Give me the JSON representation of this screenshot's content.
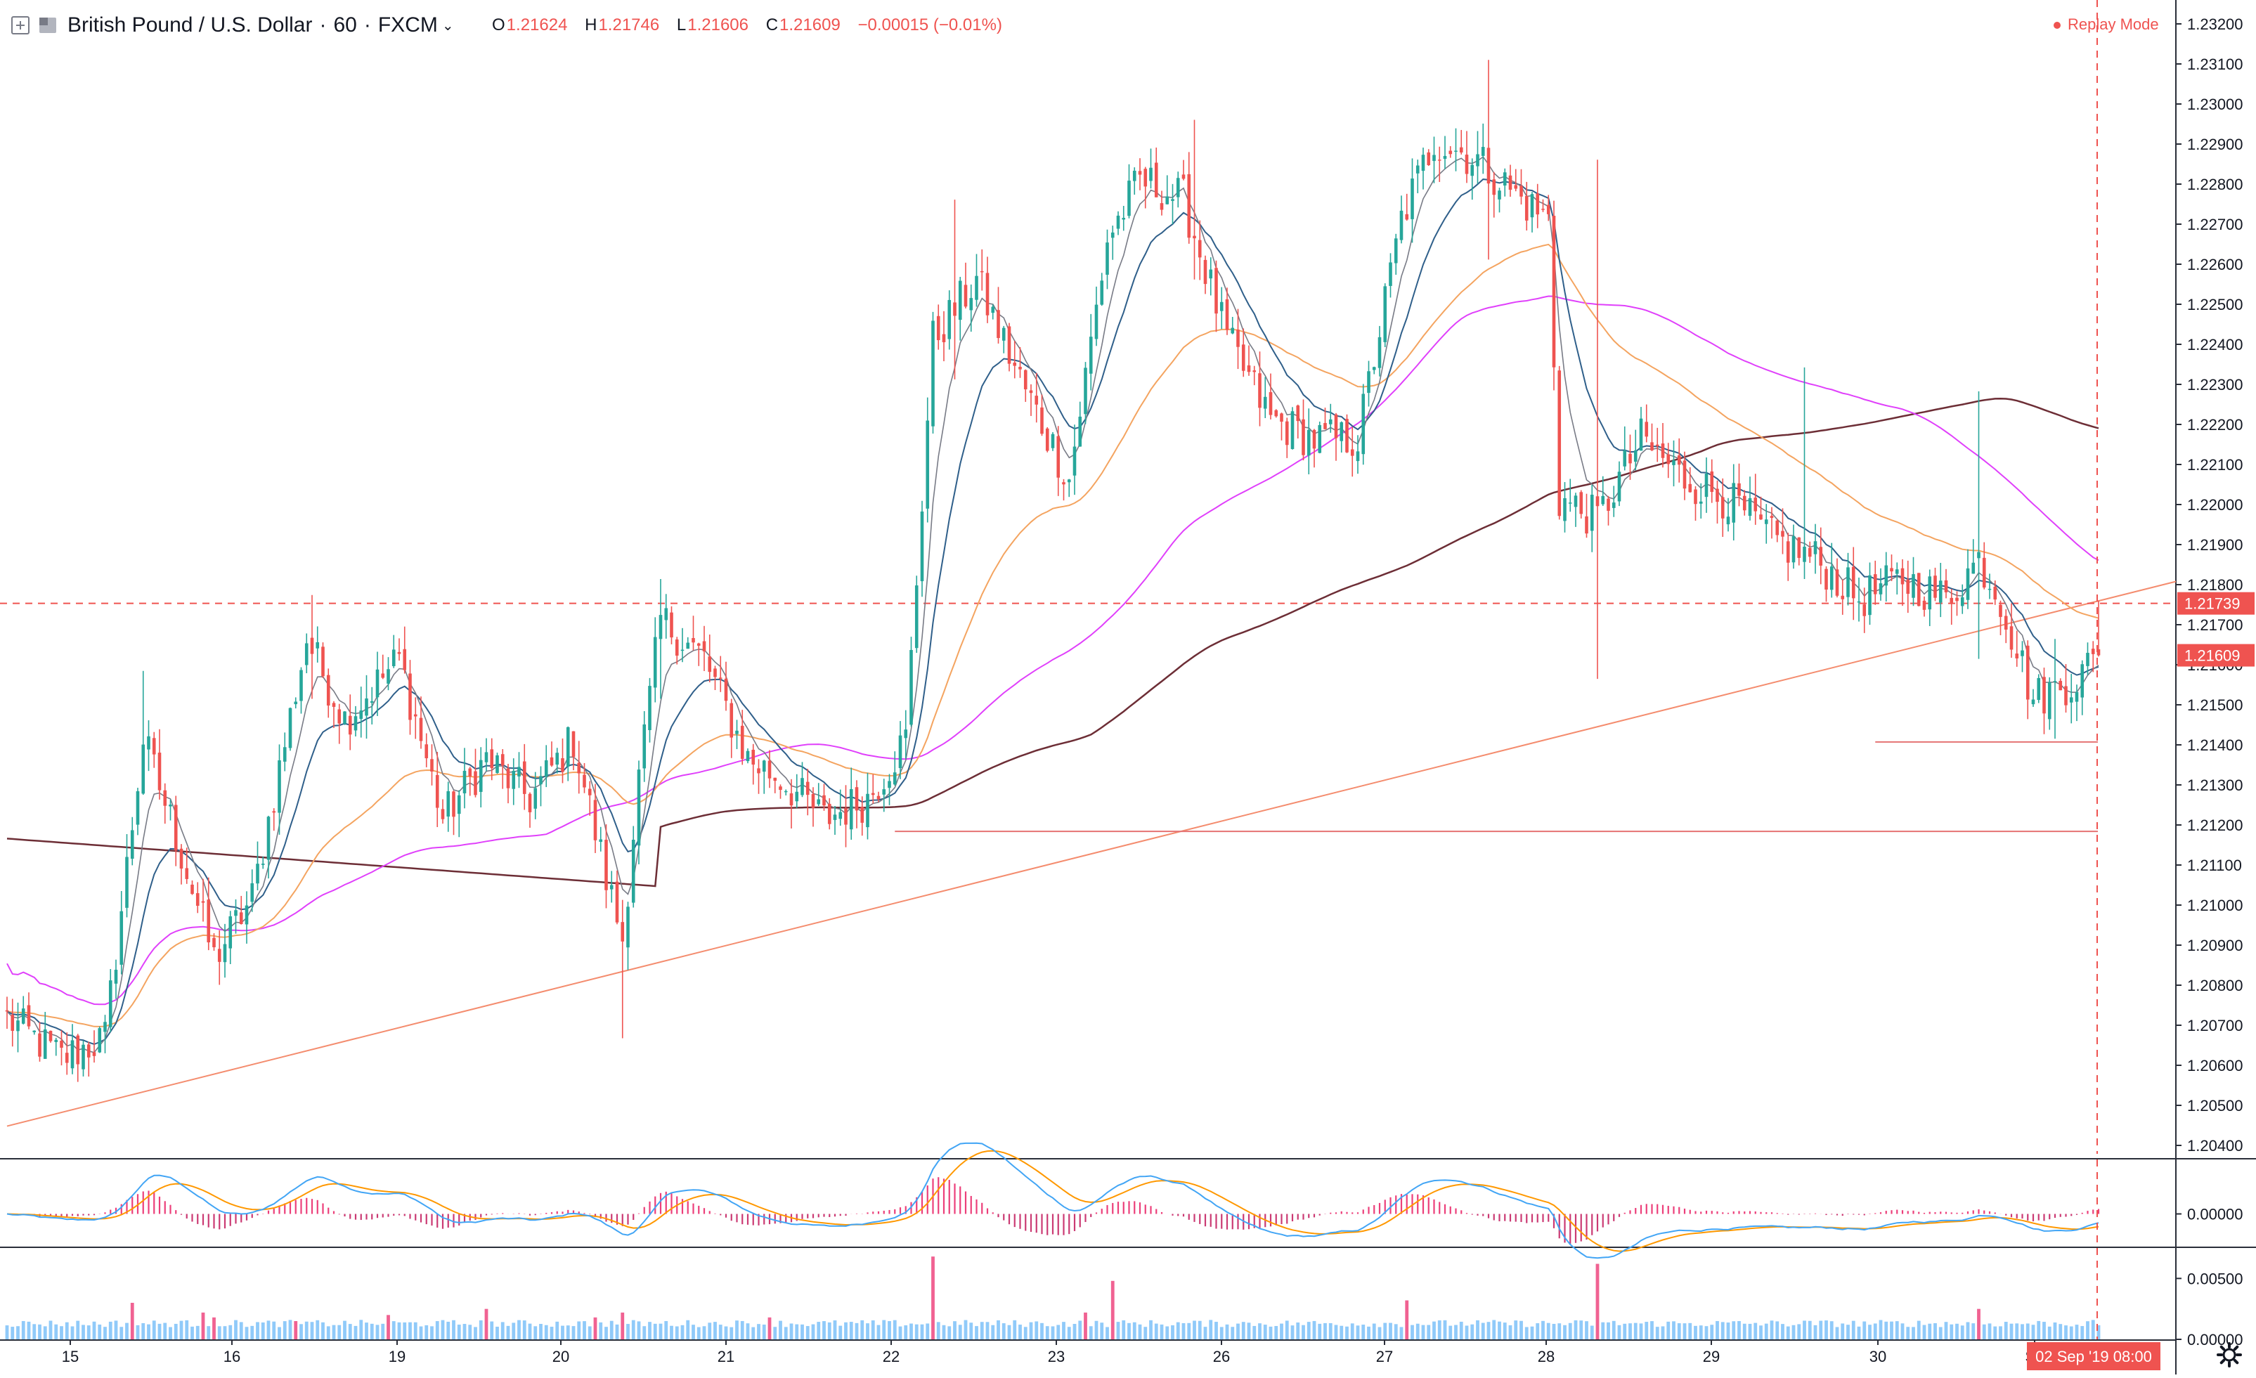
{
  "header": {
    "symbol": "British Pound / U.S. Dollar",
    "interval": "60",
    "exchange": "FXCM",
    "open_label": "O",
    "open": "1.21624",
    "high_label": "H",
    "high": "1.21746",
    "low_label": "L",
    "low": "1.21606",
    "close_label": "C",
    "close": "1.21609",
    "change": "−0.00015 (−0.01%)"
  },
  "replay_mode_label": "Replay Mode",
  "price_axis": {
    "ticks": [
      "1.23200",
      "1.23100",
      "1.23000",
      "1.22900",
      "1.22800",
      "1.22700",
      "1.22600",
      "1.22500",
      "1.22400",
      "1.22300",
      "1.22200",
      "1.22100",
      "1.22000",
      "1.21900",
      "1.21800",
      "1.21700",
      "1.21600",
      "1.21500",
      "1.21400",
      "1.21300",
      "1.21200",
      "1.21100",
      "1.21000",
      "1.20900",
      "1.20800",
      "1.20700",
      "1.20600",
      "1.20500",
      "1.20400"
    ],
    "badge_dashed": "1.21739",
    "badge_last": "1.21609"
  },
  "macd_axis": {
    "ticks": [
      "0.00000"
    ]
  },
  "vol_axis": {
    "ticks": [
      "0.00500",
      "0.00000"
    ]
  },
  "time_axis": {
    "labels": [
      "15",
      "16",
      "19",
      "20",
      "21",
      "22",
      "23",
      "26",
      "27",
      "28",
      "29",
      "30",
      "Se"
    ],
    "cursor_label": "02 Sep '19  08:00"
  },
  "colors": {
    "up": "#26a69a",
    "down": "#ef5350",
    "ma_fast": "#787b86",
    "ma_mid": "#2f5f8a",
    "ma_orange": "#f4a460",
    "ma_magenta": "#e040fb",
    "ma_maroon": "#6d2e36",
    "trend": "#f48c6e",
    "level": "#e57373",
    "macd": "#42a5f5",
    "signal": "#ff9800",
    "vol_blue": "#90caf9",
    "vol_red": "#f06292"
  },
  "chart_data": {
    "type": "candlestick",
    "title": "British Pound / U.S. Dollar · 60 · FXCM",
    "ylim": [
      1.2035,
      1.2325
    ],
    "x_labels": [
      "15",
      "16",
      "19",
      "20",
      "21",
      "22",
      "23",
      "26",
      "27",
      "28",
      "29",
      "30",
      "Se"
    ],
    "anchors": [
      [
        0,
        1.207
      ],
      [
        10,
        1.206
      ],
      [
        18,
        1.2065
      ],
      [
        25,
        1.214
      ],
      [
        30,
        1.212
      ],
      [
        38,
        1.2085
      ],
      [
        45,
        1.21
      ],
      [
        55,
        1.2165
      ],
      [
        62,
        1.2145
      ],
      [
        72,
        1.216
      ],
      [
        80,
        1.212
      ],
      [
        88,
        1.2135
      ],
      [
        96,
        1.2125
      ],
      [
        104,
        1.214
      ],
      [
        110,
        1.2105
      ],
      [
        113,
        1.209
      ],
      [
        116,
        1.213
      ],
      [
        120,
        1.217
      ],
      [
        128,
        1.216
      ],
      [
        136,
        1.2135
      ],
      [
        142,
        1.213
      ],
      [
        150,
        1.212
      ],
      [
        158,
        1.2125
      ],
      [
        165,
        1.214
      ],
      [
        170,
        1.224
      ],
      [
        178,
        1.2255
      ],
      [
        186,
        1.223
      ],
      [
        195,
        1.2205
      ],
      [
        202,
        1.2265
      ],
      [
        208,
        1.228
      ],
      [
        216,
        1.2275
      ],
      [
        224,
        1.224
      ],
      [
        232,
        1.222
      ],
      [
        240,
        1.2215
      ],
      [
        248,
        1.2215
      ],
      [
        256,
        1.227
      ],
      [
        262,
        1.229
      ],
      [
        270,
        1.2285
      ],
      [
        278,
        1.2275
      ],
      [
        283,
        1.227
      ],
      [
        285,
        1.22
      ],
      [
        292,
        1.2195
      ],
      [
        300,
        1.2215
      ],
      [
        308,
        1.2205
      ],
      [
        316,
        1.22
      ],
      [
        324,
        1.219
      ],
      [
        332,
        1.2185
      ],
      [
        340,
        1.2175
      ],
      [
        348,
        1.218
      ],
      [
        356,
        1.2175
      ],
      [
        362,
        1.2185
      ],
      [
        366,
        1.2175
      ],
      [
        372,
        1.215
      ],
      [
        380,
        1.2155
      ],
      [
        384,
        1.2161
      ]
    ],
    "wicks": [
      {
        "i": 25,
        "lo": 1.213,
        "hi": 1.2157
      },
      {
        "i": 56,
        "lo": 1.215,
        "hi": 1.2176
      },
      {
        "i": 113,
        "lo": 1.2065,
        "hi": 1.2095
      },
      {
        "i": 120,
        "lo": 1.215,
        "hi": 1.218
      },
      {
        "i": 174,
        "lo": 1.223,
        "hi": 1.2275
      },
      {
        "i": 218,
        "lo": 1.2255,
        "hi": 1.2295
      },
      {
        "i": 272,
        "lo": 1.226,
        "hi": 1.231
      },
      {
        "i": 292,
        "lo": 1.2155,
        "hi": 1.2285
      },
      {
        "i": 330,
        "lo": 1.218,
        "hi": 1.2233
      },
      {
        "i": 362,
        "lo": 1.216,
        "hi": 1.2227
      },
      {
        "i": 376,
        "lo": 1.214,
        "hi": 1.2165
      }
    ],
    "levels": [
      {
        "name": "support-1",
        "price": 1.21168
      },
      {
        "name": "support-2",
        "price": 1.21392
      },
      {
        "name": "replay-price",
        "price": 1.21739
      }
    ],
    "trendline": {
      "from": [
        0,
        1.2043
      ],
      "to": [
        400,
        1.218
      ]
    },
    "moving_averages": [
      "fast",
      "mid",
      "orange",
      "magenta",
      "maroon"
    ],
    "macd_range": [
      -0.0015,
      0.0025
    ],
    "volume_range": [
      0,
      0.0075
    ]
  }
}
